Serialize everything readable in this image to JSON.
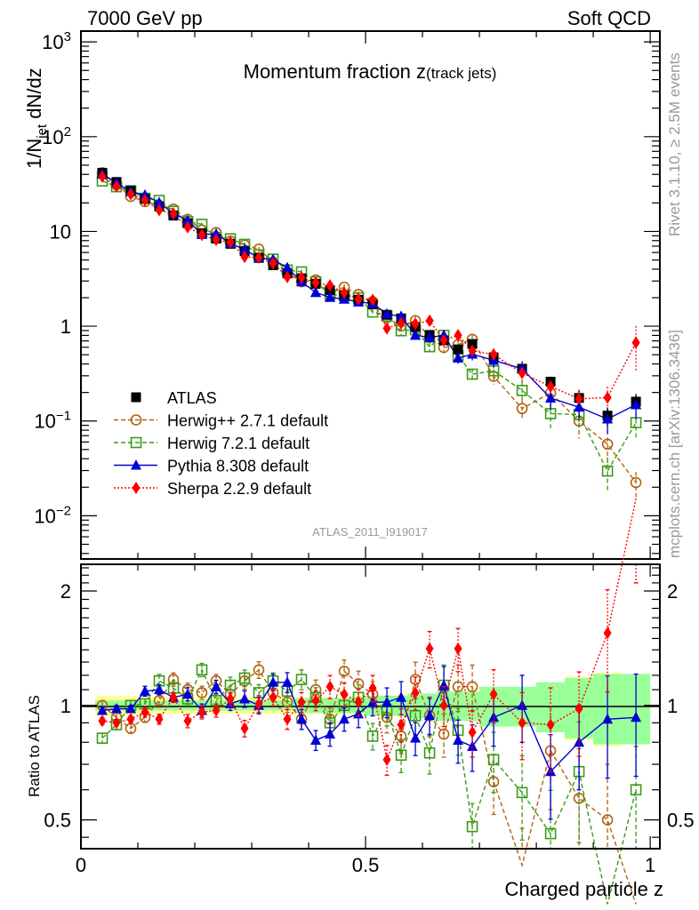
{
  "header": {
    "left": "7000 GeV pp",
    "right": "Soft QCD"
  },
  "side_labels": {
    "rivet": "Rivet 3.1.10, ≥ 2.5M events",
    "mcplots": "mcplots.cern.ch [arXiv:1306.3436]"
  },
  "analysis_id": "ATLAS_2011_I919017",
  "chart_data": [
    {
      "type": "scatter",
      "panel": "main",
      "title": "Momentum fraction z",
      "title_suffix": "(track jets)",
      "xlabel": "",
      "ylabel": "1/N_jet dN/dz",
      "ylabel_parts": {
        "pre": "1/N",
        "sub": "jet",
        "post": " dN/dz"
      },
      "yscale": "log",
      "xlim": [
        0,
        1.017
      ],
      "ylim": [
        0.0035,
        1300
      ],
      "y_tick_labels": [
        {
          "value": 1000,
          "base": "10",
          "exp": "3"
        },
        {
          "value": 100,
          "base": "10",
          "exp": "2"
        },
        {
          "value": 10,
          "base": "10",
          "exp": ""
        },
        {
          "value": 1,
          "base": "1",
          "exp": ""
        },
        {
          "value": 0.1,
          "base": "10",
          "exp": "−1"
        },
        {
          "value": 0.01,
          "base": "10",
          "exp": "−2"
        }
      ],
      "legend_position": "lower-left",
      "x": [
        0.0375,
        0.0625,
        0.0875,
        0.1125,
        0.1375,
        0.1625,
        0.1875,
        0.2125,
        0.2375,
        0.2625,
        0.2875,
        0.3125,
        0.3375,
        0.3625,
        0.3875,
        0.4125,
        0.4375,
        0.4625,
        0.4875,
        0.5125,
        0.5375,
        0.5625,
        0.5875,
        0.6125,
        0.6375,
        0.6625,
        0.6875,
        0.725,
        0.775,
        0.825,
        0.875,
        0.925,
        0.975
      ],
      "reference": {
        "name": "ATLAS",
        "color": "#000000",
        "marker": "square",
        "values": [
          41.6,
          33.3,
          26.9,
          22.2,
          18.3,
          14.7,
          12.2,
          9.6,
          8.4,
          7.4,
          6.2,
          5.25,
          4.4,
          3.6,
          3.2,
          2.8,
          2.4,
          2.1,
          1.9,
          1.7,
          1.32,
          1.21,
          0.98,
          0.81,
          0.71,
          0.57,
          0.65,
          0.47,
          0.356,
          0.26,
          0.175,
          0.114,
          0.16
        ],
        "rel_err_stat": [
          0.01,
          0.01,
          0.01,
          0.01,
          0.01,
          0.01,
          0.01,
          0.01,
          0.01,
          0.01,
          0.01,
          0.01,
          0.01,
          0.01,
          0.015,
          0.015,
          0.015,
          0.015,
          0.015,
          0.02,
          0.02,
          0.02,
          0.025,
          0.025,
          0.03,
          0.03,
          0.03,
          0.04,
          0.04,
          0.05,
          0.06,
          0.07,
          0.07
        ],
        "rel_err_total": [
          0.06,
          0.06,
          0.06,
          0.05,
          0.05,
          0.05,
          0.05,
          0.05,
          0.05,
          0.05,
          0.05,
          0.05,
          0.05,
          0.05,
          0.05,
          0.05,
          0.05,
          0.05,
          0.06,
          0.06,
          0.06,
          0.07,
          0.07,
          0.07,
          0.08,
          0.09,
          0.09,
          0.1,
          0.11,
          0.13,
          0.19,
          0.22,
          0.17
        ]
      },
      "series": [
        {
          "name": "Herwig++ 2.7.1 default",
          "legend_label": "Herwig++ 2.7.1 default",
          "color": "#b2620f",
          "marker": "open-circle",
          "line": "dashed",
          "ratio": [
            1.0,
            0.93,
            0.87,
            0.93,
            1.03,
            1.17,
            1.1,
            1.08,
            1.16,
            1.07,
            1.16,
            1.24,
            1.08,
            1.02,
            0.92,
            1.1,
            0.92,
            1.23,
            1.14,
            1.07,
            0.93,
            0.83,
            1.17,
            0.94,
            0.84,
            1.12,
            1.12,
            0.63,
            0.38,
            0.76,
            0.57,
            0.5,
            0.14
          ],
          "ratio_err": [
            0.03,
            0.03,
            0.03,
            0.03,
            0.04,
            0.04,
            0.04,
            0.04,
            0.04,
            0.05,
            0.05,
            0.05,
            0.05,
            0.06,
            0.06,
            0.06,
            0.07,
            0.07,
            0.08,
            0.08,
            0.09,
            0.1,
            0.11,
            0.12,
            0.13,
            0.14,
            0.14,
            0.18,
            0.25,
            0.3,
            0.35,
            0.4,
            0.3
          ]
        },
        {
          "name": "Herwig 7.2.1 default",
          "legend_label": "Herwig 7.2.1 default",
          "color": "#3a9a16",
          "marker": "open-square",
          "line": "dashed",
          "ratio": [
            0.82,
            0.89,
            1.0,
            1.01,
            1.16,
            1.11,
            1.04,
            1.24,
            1.03,
            1.13,
            1.18,
            1.08,
            1.16,
            1.09,
            1.17,
            1.05,
            0.9,
            1.0,
            1.05,
            0.83,
            0.97,
            0.74,
            0.94,
            0.75,
            1.13,
            0.86,
            0.48,
            0.72,
            0.59,
            0.46,
            0.67,
            0.26,
            0.6
          ],
          "ratio_err": [
            0.03,
            0.03,
            0.03,
            0.03,
            0.04,
            0.04,
            0.04,
            0.04,
            0.04,
            0.05,
            0.05,
            0.05,
            0.05,
            0.06,
            0.06,
            0.06,
            0.07,
            0.07,
            0.08,
            0.08,
            0.09,
            0.1,
            0.11,
            0.12,
            0.13,
            0.14,
            0.15,
            0.18,
            0.25,
            0.3,
            0.35,
            0.4,
            0.3
          ]
        },
        {
          "name": "Pythia 8.308 default",
          "legend_label": "Pythia 8.308 default",
          "color": "#0000d4",
          "marker": "filled-triangle",
          "line": "solid",
          "ratio": [
            0.97,
            0.98,
            0.98,
            1.09,
            1.1,
            1.05,
            1.07,
            0.97,
            1.12,
            1.01,
            1.04,
            1.0,
            1.15,
            1.15,
            0.92,
            0.81,
            0.84,
            0.92,
            0.95,
            1.02,
            1.02,
            1.05,
            0.82,
            0.94,
            1.13,
            0.81,
            0.78,
            0.93,
            1.0,
            0.67,
            0.8,
            0.92,
            0.93
          ],
          "ratio_err": [
            0.02,
            0.02,
            0.02,
            0.03,
            0.03,
            0.03,
            0.04,
            0.04,
            0.04,
            0.04,
            0.05,
            0.05,
            0.05,
            0.06,
            0.06,
            0.06,
            0.07,
            0.07,
            0.08,
            0.08,
            0.09,
            0.1,
            0.1,
            0.11,
            0.12,
            0.13,
            0.14,
            0.16,
            0.2,
            0.25,
            0.25,
            0.3,
            0.3
          ]
        },
        {
          "name": "Sherpa 2.2.9 default",
          "legend_label": "Sherpa 2.2.9 default",
          "color": "#ff0000",
          "marker": "filled-diamond",
          "line": "dotted",
          "ratio": [
            0.91,
            0.9,
            0.92,
            0.96,
            0.92,
            1.05,
            0.91,
            0.96,
            0.97,
            1.04,
            0.87,
            1.01,
            1.05,
            0.92,
            1.02,
            1.03,
            1.12,
            1.07,
            1.02,
            1.11,
            0.72,
            0.89,
            1.08,
            1.41,
            1.0,
            1.41,
            0.85,
            1.07,
            0.9,
            0.89,
            0.98,
            1.55,
            4.2
          ],
          "ratio_err": [
            0.02,
            0.02,
            0.02,
            0.03,
            0.03,
            0.03,
            0.04,
            0.04,
            0.04,
            0.04,
            0.05,
            0.05,
            0.05,
            0.06,
            0.06,
            0.06,
            0.07,
            0.07,
            0.08,
            0.08,
            0.09,
            0.1,
            0.1,
            0.11,
            0.12,
            0.13,
            0.14,
            0.16,
            0.2,
            0.25,
            0.25,
            0.3,
            0.5
          ]
        }
      ]
    },
    {
      "type": "scatter",
      "panel": "ratio",
      "xlabel": "Charged particle z",
      "ylabel": "Ratio to ATLAS",
      "yscale": "log",
      "xlim": [
        0,
        1.017
      ],
      "ylim": [
        0.42,
        2.35
      ],
      "y_tick_labels": [
        "2",
        "1",
        "0.5"
      ],
      "y_tick_values": [
        2,
        1,
        0.5
      ],
      "x_tick_labels": [
        "0",
        "0.5",
        "1"
      ],
      "x_tick_values": [
        0,
        0.5,
        1
      ],
      "bands": {
        "stat_color": "#99ff99",
        "total_color": "#ffff99"
      },
      "bin_edges": [
        0.025,
        0.05,
        0.075,
        0.1,
        0.125,
        0.15,
        0.175,
        0.2,
        0.225,
        0.25,
        0.275,
        0.3,
        0.325,
        0.35,
        0.375,
        0.4,
        0.425,
        0.45,
        0.475,
        0.5,
        0.525,
        0.55,
        0.575,
        0.6,
        0.625,
        0.65,
        0.675,
        0.7,
        0.75,
        0.8,
        0.85,
        0.9,
        0.95,
        1.0
      ]
    }
  ]
}
